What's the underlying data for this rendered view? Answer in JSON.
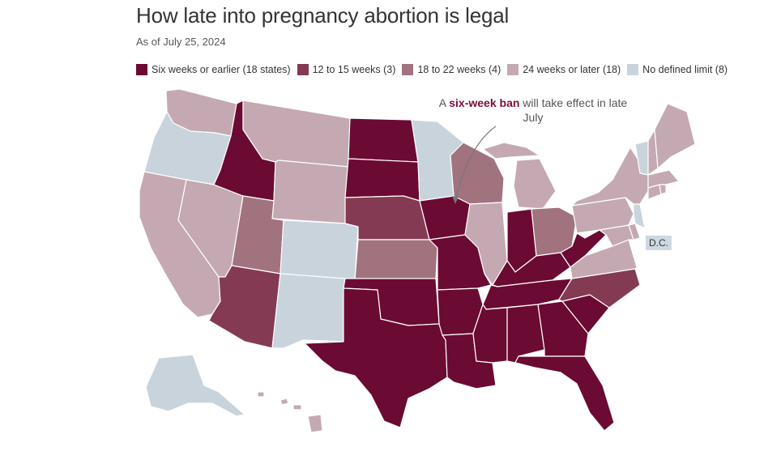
{
  "title": "How late into pregnancy abortion is legal",
  "subtitle": "As of July 25, 2024",
  "legend": [
    {
      "key": "six",
      "label": "Six weeks or earlier (18 states)",
      "color": "#6b0a33"
    },
    {
      "key": "twelve",
      "label": "12 to 15 weeks (3)",
      "color": "#843a52"
    },
    {
      "key": "eighteen",
      "label": "18 to 22 weeks (4)",
      "color": "#a0737f"
    },
    {
      "key": "twentyfour",
      "label": "24 weeks or later (18)",
      "color": "#c4a9b2"
    },
    {
      "key": "none",
      "label": "No defined limit (8)",
      "color": "#c9d3dc"
    }
  ],
  "callout": {
    "prefix": "A ",
    "highlight": "six-week ban",
    "suffix": " will take effect in late July"
  },
  "dc_label": "D.C.",
  "colors": {
    "six": "#6b0a33",
    "twelve": "#843a52",
    "eighteen": "#a0737f",
    "twentyfour": "#c4a9b2",
    "none": "#c9d3dc",
    "border": "#ffffff"
  },
  "states": {
    "WA": "twentyfour",
    "OR": "none",
    "CA": "twentyfour",
    "NV": "twentyfour",
    "ID": "six",
    "MT": "twentyfour",
    "WY": "twentyfour",
    "UT": "eighteen",
    "AZ": "twelve",
    "CO": "none",
    "NM": "none",
    "ND": "six",
    "SD": "six",
    "NE": "twelve",
    "KS": "eighteen",
    "OK": "six",
    "TX": "six",
    "MN": "none",
    "IA": "six",
    "MO": "six",
    "AR": "six",
    "LA": "six",
    "WI": "eighteen",
    "IL": "twentyfour",
    "MI": "twentyfour",
    "IN": "six",
    "OH": "eighteen",
    "KY": "six",
    "TN": "six",
    "MS": "six",
    "AL": "six",
    "GA": "six",
    "FL": "six",
    "SC": "six",
    "NC": "twelve",
    "VA": "twentyfour",
    "WV": "six",
    "MD": "twentyfour",
    "DE": "twentyfour",
    "PA": "twentyfour",
    "NJ": "none",
    "NY": "twentyfour",
    "CT": "twentyfour",
    "RI": "twentyfour",
    "MA": "twentyfour",
    "VT": "none",
    "NH": "twentyfour",
    "ME": "twentyfour",
    "AK": "none",
    "HI": "twentyfour"
  }
}
